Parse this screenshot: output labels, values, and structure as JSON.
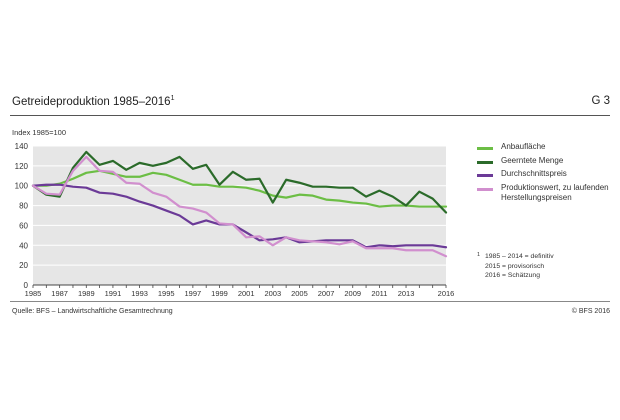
{
  "header": {
    "title": "Getreideproduktion 1985–2016",
    "title_footnote_mark": "1",
    "code": "G 3"
  },
  "chart_data": {
    "type": "line",
    "title": "Getreideproduktion 1985–2016",
    "ylabel": "Index 1985=100",
    "xlabel": "",
    "ylim": [
      0,
      140
    ],
    "yticks": [
      0,
      20,
      40,
      60,
      80,
      100,
      120,
      140
    ],
    "xlim": [
      1985,
      2016
    ],
    "xticks": [
      1985,
      1987,
      1989,
      1991,
      1993,
      1995,
      1997,
      1999,
      2001,
      2003,
      2005,
      2007,
      2009,
      2011,
      2013,
      2016
    ],
    "grid": true,
    "plot_background": "#e6e6e6",
    "legend_position": "right",
    "x": [
      1985,
      1986,
      1987,
      1988,
      1989,
      1990,
      1991,
      1992,
      1993,
      1994,
      1995,
      1996,
      1997,
      1998,
      1999,
      2000,
      2001,
      2002,
      2003,
      2004,
      2005,
      2006,
      2007,
      2008,
      2009,
      2010,
      2011,
      2012,
      2013,
      2014,
      2015,
      2016
    ],
    "series": [
      {
        "name": "Anbaufläche",
        "color": "#6cbe45",
        "values": [
          100,
          100,
          102,
          107,
          113,
          115,
          112,
          109,
          109,
          113,
          111,
          106,
          101,
          101,
          99,
          99,
          98,
          95,
          90,
          88,
          91,
          90,
          86,
          85,
          83,
          82,
          79,
          80,
          80,
          79,
          79,
          79
        ]
      },
      {
        "name": "Geerntete Menge",
        "color": "#2b6b2a",
        "values": [
          100,
          91,
          89,
          118,
          134,
          121,
          125,
          116,
          123,
          120,
          123,
          129,
          117,
          121,
          101,
          114,
          106,
          107,
          83,
          106,
          103,
          99,
          99,
          98,
          98,
          89,
          95,
          89,
          80,
          94,
          87,
          73
        ]
      },
      {
        "name": "Durchschnittspreis",
        "color": "#6b3a97",
        "values": [
          100,
          101,
          101,
          99,
          98,
          93,
          92,
          89,
          84,
          80,
          75,
          70,
          61,
          65,
          61,
          61,
          53,
          45,
          46,
          48,
          43,
          44,
          45,
          45,
          45,
          38,
          40,
          39,
          40,
          40,
          40,
          38
        ]
      },
      {
        "name": "Produktionswert, zu laufenden Herstellungspreisen",
        "color": "#d18fce",
        "values": [
          100,
          92,
          91,
          115,
          129,
          115,
          114,
          103,
          102,
          93,
          89,
          79,
          77,
          73,
          62,
          61,
          48,
          49,
          40,
          48,
          45,
          44,
          43,
          41,
          44,
          37,
          37,
          37,
          35,
          35,
          35,
          29
        ]
      }
    ]
  },
  "footnote": {
    "mark": "1",
    "lines": [
      "1985 – 2014 = definitiv",
      "2015 = provisorisch",
      "2016 = Schätzung"
    ]
  },
  "footer": {
    "source": "Quelle: BFS – Landwirtschaftliche Gesamtrechnung",
    "copyright": "© BFS 2016"
  }
}
